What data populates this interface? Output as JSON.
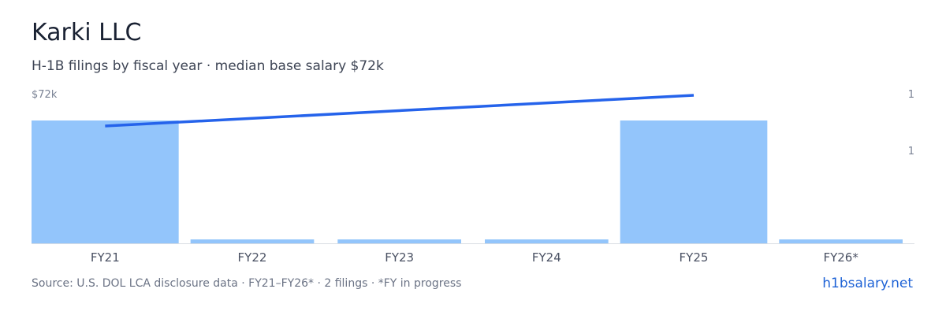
{
  "header": {
    "title": "Karki LLC",
    "subtitle": "H-1B filings by fiscal year · median base salary $72k"
  },
  "chart_data": {
    "type": "bar",
    "categories": [
      "FY21",
      "FY22",
      "FY23",
      "FY24",
      "FY25",
      "FY26*"
    ],
    "series": [
      {
        "type": "bar",
        "values": [
          1,
          0,
          0,
          0,
          1,
          0
        ],
        "color": "#93c5fb"
      },
      {
        "type": "line",
        "points": [
          {
            "x": "FY21",
            "y": 72
          },
          {
            "x": "FY25",
            "y": 72
          }
        ],
        "color": "#2563eb"
      }
    ],
    "left_axis": {
      "tick_label": "$72k"
    },
    "right_axis": {
      "tick_labels": [
        "1",
        "1"
      ]
    },
    "grid": false,
    "legend": "none",
    "colors": {
      "bar": "#93c5fb",
      "line": "#2563eb",
      "baseline": "#d9dde3"
    }
  },
  "footer": {
    "source": "Source: U.S. DOL LCA disclosure data · FY21–FY26* · 2 filings · *FY in progress",
    "site": "h1bsalary.net"
  }
}
